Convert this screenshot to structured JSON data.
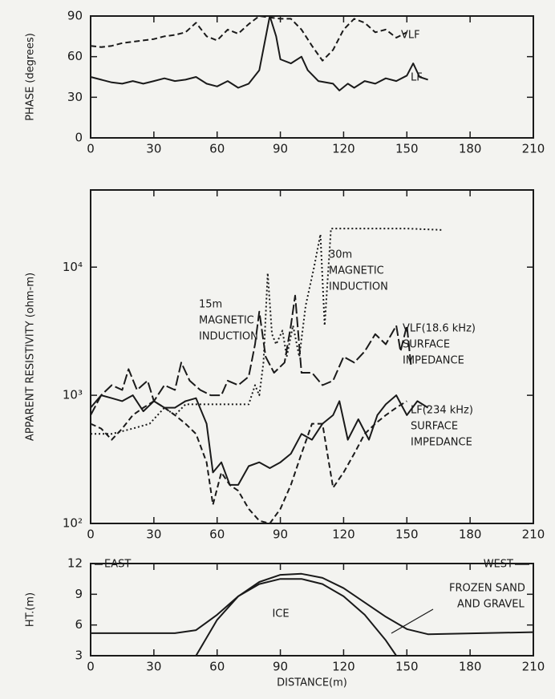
{
  "chart_data": [
    {
      "type": "line",
      "ylabel": "PHASE (degrees)",
      "xlim": [
        0,
        210
      ],
      "xticks": [
        0,
        30,
        60,
        90,
        120,
        150,
        180,
        210
      ],
      "ylim": [
        0,
        90
      ],
      "yticks": [
        0,
        30,
        60,
        90
      ],
      "grid": false,
      "color": "#1a1a1a",
      "series": [
        {
          "label": [
            "VLF"
          ],
          "dash": "dashed",
          "x": [
            0,
            5,
            10,
            15,
            20,
            25,
            30,
            35,
            40,
            45,
            50,
            55,
            60,
            65,
            70,
            75,
            80,
            85,
            90,
            95,
            100,
            105,
            110,
            115,
            120,
            125,
            130,
            135,
            140,
            145,
            150
          ],
          "values": [
            68,
            67,
            68,
            70,
            71,
            72,
            73,
            75,
            76,
            78,
            85,
            75,
            72,
            80,
            77,
            84,
            90,
            89,
            88,
            88,
            80,
            68,
            57,
            65,
            80,
            88,
            85,
            78,
            80,
            74,
            78
          ]
        },
        {
          "label": [
            "LF"
          ],
          "dash": "solid",
          "x": [
            0,
            5,
            10,
            15,
            20,
            25,
            30,
            35,
            40,
            45,
            50,
            55,
            60,
            65,
            70,
            75,
            80,
            85,
            88,
            90,
            95,
            100,
            103,
            108,
            115,
            118,
            122,
            125,
            130,
            135,
            140,
            145,
            150,
            153,
            156,
            160
          ],
          "values": [
            45,
            43,
            41,
            40,
            42,
            40,
            42,
            44,
            42,
            43,
            45,
            40,
            38,
            42,
            37,
            40,
            50,
            90,
            75,
            58,
            55,
            60,
            50,
            42,
            40,
            35,
            40,
            37,
            42,
            40,
            44,
            42,
            46,
            55,
            45,
            43
          ]
        }
      ]
    },
    {
      "type": "line",
      "ylabel": "APPARENT RESISTIVITY (ohm-m)",
      "log_scale": true,
      "xlim": [
        0,
        210
      ],
      "xticks": [
        0,
        30,
        60,
        90,
        120,
        150,
        180,
        210
      ],
      "ylim": [
        100,
        40000
      ],
      "yticks": [
        {
          "value": 100,
          "label": "10²"
        },
        {
          "value": 1000,
          "label": "10³"
        },
        {
          "value": 10000,
          "label": "10⁴"
        }
      ],
      "grid": false,
      "color": "#1a1a1a",
      "series": [
        {
          "label": [
            "LF(234 kHz)",
            "SURFACE",
            "IMPEDANCE"
          ],
          "dash": "solid",
          "x": [
            0,
            5,
            10,
            15,
            20,
            25,
            30,
            35,
            40,
            45,
            50,
            55,
            58,
            62,
            66,
            70,
            75,
            80,
            85,
            90,
            95,
            100,
            105,
            110,
            115,
            118,
            122,
            127,
            132,
            136,
            140,
            145,
            150,
            155,
            160
          ],
          "values": [
            800,
            1000,
            950,
            900,
            1000,
            750,
            900,
            800,
            800,
            900,
            950,
            600,
            250,
            300,
            200,
            200,
            280,
            300,
            270,
            300,
            350,
            500,
            450,
            600,
            700,
            900,
            450,
            650,
            450,
            700,
            850,
            1000,
            700,
            900,
            800
          ]
        },
        {
          "label": [
            "VLF(18.6 kHz)",
            "SURFACE",
            "IMPEDANCE"
          ],
          "dash": "long-dash",
          "x": [
            0,
            5,
            10,
            15,
            18,
            22,
            27,
            30,
            35,
            40,
            43,
            47,
            52,
            57,
            62,
            65,
            70,
            75,
            78,
            80,
            83,
            87,
            92,
            95,
            97,
            100,
            105,
            110,
            115,
            120,
            125,
            130,
            135,
            140,
            145,
            147,
            150,
            152
          ],
          "values": [
            700,
            1000,
            1200,
            1100,
            1600,
            1100,
            1300,
            900,
            1200,
            1100,
            1800,
            1300,
            1100,
            1000,
            1000,
            1300,
            1200,
            1400,
            2500,
            4500,
            2000,
            1500,
            1800,
            3500,
            6000,
            1500,
            1500,
            1200,
            1300,
            2000,
            1800,
            2200,
            3000,
            2500,
            3500,
            2200,
            3500,
            1700
          ]
        },
        {
          "label": [
            "30m",
            "MAGNETIC",
            "INDUCTION"
          ],
          "dash": "dotted",
          "x": [
            0,
            10,
            20,
            28,
            35,
            40,
            45,
            50,
            60,
            70,
            75,
            78,
            80,
            82,
            84,
            86,
            88,
            91,
            93,
            96,
            99,
            102,
            106,
            109,
            111,
            114,
            130,
            150,
            167
          ],
          "values": [
            500,
            500,
            550,
            600,
            800,
            700,
            850,
            850,
            850,
            850,
            850,
            1200,
            1000,
            1800,
            9000,
            3000,
            2500,
            3200,
            2000,
            3500,
            2000,
            5000,
            10000,
            18000,
            3500,
            20000,
            20000,
            20000,
            19500
          ]
        },
        {
          "label": [
            "15m",
            "MAGNETIC",
            "INDUCTION"
          ],
          "dash": "dashed",
          "x": [
            0,
            5,
            10,
            15,
            20,
            25,
            30,
            35,
            40,
            45,
            50,
            55,
            58,
            62,
            66,
            70,
            75,
            80,
            85,
            90,
            95,
            100,
            105,
            110,
            113,
            115,
            120,
            125,
            130,
            135,
            140,
            145,
            150
          ],
          "values": [
            600,
            550,
            450,
            550,
            700,
            800,
            900,
            800,
            700,
            600,
            500,
            300,
            140,
            250,
            200,
            180,
            130,
            105,
            100,
            130,
            200,
            350,
            600,
            600,
            300,
            190,
            250,
            350,
            500,
            600,
            700,
            800,
            900
          ]
        }
      ]
    },
    {
      "type": "line",
      "ylabel": "HT.(m)",
      "xlabel": "DISTANCE(m)",
      "xlim": [
        0,
        210
      ],
      "xticks": [
        0,
        30,
        60,
        90,
        120,
        150,
        180,
        210
      ],
      "ylim": [
        3,
        12
      ],
      "yticks": [
        3,
        6,
        9,
        12
      ],
      "grid": false,
      "color": "#1a1a1a",
      "annotations": [
        "EAST",
        "WEST",
        "ICE",
        "FROZEN SAND",
        "AND GRAVEL"
      ],
      "series": [
        {
          "dash": "solid",
          "x": [
            0,
            40,
            50,
            60,
            70,
            80,
            90,
            100,
            110,
            120,
            130,
            140,
            150,
            160,
            210
          ],
          "values": [
            5.2,
            5.2,
            5.5,
            7,
            8.8,
            10.2,
            10.9,
            11,
            10.6,
            9.6,
            8.2,
            6.8,
            5.6,
            5.1,
            5.3
          ]
        },
        {
          "dash": "solid",
          "x": [
            50,
            60,
            70,
            80,
            90,
            100,
            110,
            120,
            130,
            140,
            145
          ],
          "values": [
            3,
            6.5,
            8.8,
            10,
            10.5,
            10.5,
            10,
            8.8,
            7,
            4.5,
            3
          ]
        }
      ]
    }
  ]
}
